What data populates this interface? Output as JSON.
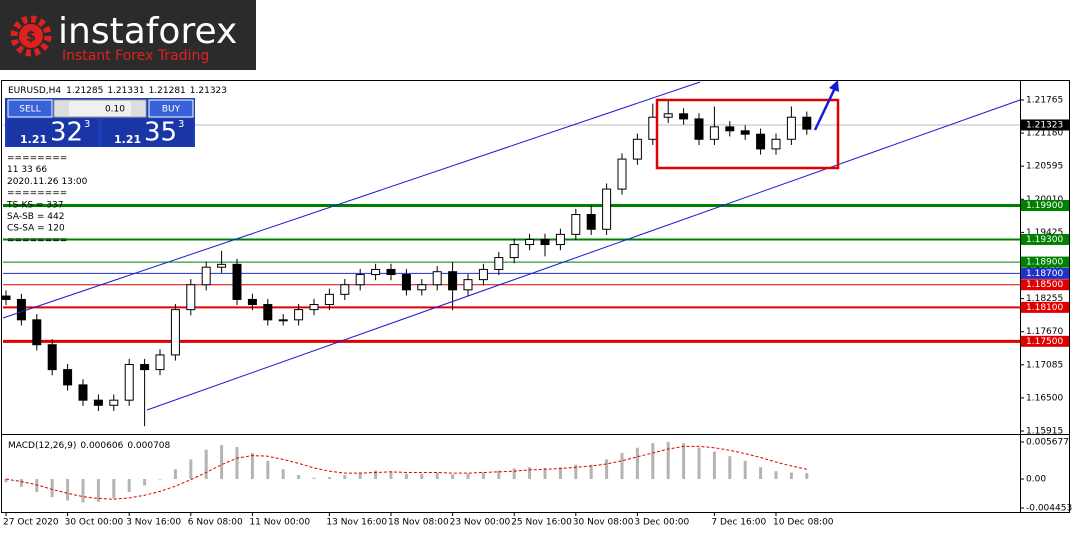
{
  "logo": {
    "name": "instaforex",
    "tagline": "Instant Forex Trading"
  },
  "trade_panel": {
    "sell": "SELL",
    "buy": "BUY",
    "lots": "0.10",
    "sell_price": {
      "big": "1.21",
      "pips": "32",
      "fraction": "3"
    },
    "buy_price": {
      "big": "1.21",
      "pips": "35",
      "fraction": "3"
    }
  },
  "info_lines": [
    "========",
    "11 33 66",
    "2020.11.26 13:00",
    "========",
    "TS-KS = 337",
    "SA-SB = 442",
    "CS-SA = 120",
    "========"
  ],
  "chart_data": [
    {
      "type": "candlestick",
      "title": "EURUSD,H4",
      "quote": [
        1.21285,
        1.21331,
        1.21281,
        1.21323
      ],
      "categories": [
        "27 Oct 2020",
        null,
        null,
        null,
        "30 Oct 00:00",
        null,
        null,
        null,
        "3 Nov 16:00",
        null,
        null,
        null,
        "6 Nov 08:00",
        null,
        null,
        null,
        "11 Nov 00:00",
        null,
        null,
        null,
        null,
        "13 Nov 16:00",
        null,
        null,
        null,
        "18 Nov 08:00",
        null,
        null,
        null,
        "23 Nov 00:00",
        null,
        null,
        null,
        "25 Nov 16:00",
        null,
        null,
        null,
        "30 Nov 08:00",
        null,
        null,
        null,
        "3 Dec 00:00",
        null,
        null,
        null,
        null,
        "7 Dec 16:00",
        null,
        null,
        null,
        "10 Dec 08:00",
        null,
        null
      ],
      "ohlc": [
        [
          1.183,
          1.184,
          1.1814,
          1.1824
        ],
        [
          1.1824,
          1.1834,
          1.1778,
          1.1788
        ],
        [
          1.1788,
          1.1798,
          1.1734,
          1.1744
        ],
        [
          1.1744,
          1.1754,
          1.169,
          1.17
        ],
        [
          1.17,
          1.171,
          1.1663,
          1.1673
        ],
        [
          1.1673,
          1.1683,
          1.1636,
          1.1646
        ],
        [
          1.1646,
          1.1656,
          1.1627,
          1.1637
        ],
        [
          1.1637,
          1.1656,
          1.1627,
          1.1646
        ],
        [
          1.1646,
          1.1719,
          1.1636,
          1.1709
        ],
        [
          1.1709,
          1.1719,
          1.16,
          1.17
        ],
        [
          1.17,
          1.1736,
          1.169,
          1.1726
        ],
        [
          1.1726,
          1.1816,
          1.1716,
          1.1806
        ],
        [
          1.1806,
          1.186,
          1.1796,
          1.185
        ],
        [
          1.185,
          1.1891,
          1.184,
          1.1881
        ],
        [
          1.1881,
          1.191,
          1.1871,
          1.1886
        ],
        [
          1.1886,
          1.1896,
          1.1814,
          1.1824
        ],
        [
          1.1824,
          1.1834,
          1.1805,
          1.1815
        ],
        [
          1.1815,
          1.1825,
          1.1778,
          1.1788
        ],
        [
          1.1788,
          1.1798,
          1.1778,
          1.1788
        ],
        [
          1.1788,
          1.1816,
          1.1778,
          1.1806
        ],
        [
          1.1806,
          1.1825,
          1.1796,
          1.1815
        ],
        [
          1.1815,
          1.1843,
          1.1805,
          1.1833
        ],
        [
          1.1833,
          1.186,
          1.1823,
          1.185
        ],
        [
          1.185,
          1.1878,
          1.184,
          1.1868
        ],
        [
          1.1868,
          1.1887,
          1.1858,
          1.1877
        ],
        [
          1.1877,
          1.1887,
          1.1858,
          1.1868
        ],
        [
          1.1868,
          1.1878,
          1.1831,
          1.1841
        ],
        [
          1.1841,
          1.186,
          1.1831,
          1.185
        ],
        [
          1.185,
          1.1883,
          1.184,
          1.1873
        ],
        [
          1.1873,
          1.189,
          1.1805,
          1.1841
        ],
        [
          1.1841,
          1.1869,
          1.1831,
          1.1859
        ],
        [
          1.1859,
          1.1887,
          1.1849,
          1.1877
        ],
        [
          1.1877,
          1.1908,
          1.1867,
          1.1898
        ],
        [
          1.1898,
          1.1931,
          1.1888,
          1.1921
        ],
        [
          1.1921,
          1.194,
          1.1911,
          1.193
        ],
        [
          1.193,
          1.194,
          1.19,
          1.1921
        ],
        [
          1.1921,
          1.1949,
          1.1911,
          1.1939
        ],
        [
          1.1939,
          1.1984,
          1.1929,
          1.1974
        ],
        [
          1.1974,
          1.199,
          1.1938,
          1.1948
        ],
        [
          1.1948,
          1.2029,
          1.1938,
          1.2019
        ],
        [
          1.2019,
          1.2082,
          1.2009,
          1.2072
        ],
        [
          1.2072,
          1.2117,
          1.2062,
          1.2107
        ],
        [
          1.2107,
          1.217,
          1.2097,
          1.2146
        ],
        [
          1.2146,
          1.2177,
          1.2136,
          1.2152
        ],
        [
          1.2152,
          1.2162,
          1.2133,
          1.2143
        ],
        [
          1.2143,
          1.2153,
          1.2097,
          1.2107
        ],
        [
          1.2107,
          1.2165,
          1.2097,
          1.2129
        ],
        [
          1.2129,
          1.2139,
          1.2112,
          1.2122
        ],
        [
          1.2122,
          1.2132,
          1.2106,
          1.2116
        ],
        [
          1.2116,
          1.2126,
          1.208,
          1.209
        ],
        [
          1.209,
          1.2117,
          1.208,
          1.2107
        ],
        [
          1.2107,
          1.2165,
          1.2097,
          1.2146
        ],
        [
          1.2146,
          1.2156,
          1.2115,
          1.2125
        ]
      ],
      "ylim": [
        1.1588,
        1.221
      ],
      "yticks": [
        {
          "value": 1.21765,
          "label": "1.21765"
        },
        {
          "value": 1.2118,
          "label": "1.21180"
        },
        {
          "value": 1.20595,
          "label": "1.20595"
        },
        {
          "value": 1.2001,
          "label": "1.20010"
        },
        {
          "value": 1.19425,
          "label": "1.19425"
        },
        {
          "value": 1.1884,
          "label": "1.18840"
        },
        {
          "value": 1.18255,
          "label": "1.18255"
        },
        {
          "value": 1.1767,
          "label": "1.17670"
        },
        {
          "value": 1.17085,
          "label": "1.17085"
        },
        {
          "value": 1.165,
          "label": "1.16500"
        },
        {
          "value": 1.15915,
          "label": "1.15915"
        }
      ],
      "current_price": {
        "value": 1.21323,
        "label": "1.21323"
      },
      "levels": [
        {
          "value": 1.199,
          "label": "1.19900",
          "color": "#008000",
          "width": 3
        },
        {
          "value": 1.193,
          "label": "1.19300",
          "color": "#008000",
          "width": 2
        },
        {
          "value": 1.189,
          "label": "1.18900",
          "color": "#008000",
          "width": 1
        },
        {
          "value": 1.187,
          "label": "1.18700",
          "color": "#2030c8",
          "width": 1
        },
        {
          "value": 1.185,
          "label": "1.18500",
          "color": "#e00000",
          "width": 1
        },
        {
          "value": 1.181,
          "label": "1.18100",
          "color": "#e00000",
          "width": 2
        },
        {
          "value": 1.175,
          "label": "1.17500",
          "color": "#e00000",
          "width": 3
        }
      ]
    },
    {
      "type": "macd",
      "title": "MACD(12,26,9)",
      "quote": [
        0.000606,
        0.000708
      ],
      "ylim": [
        -0.00522,
        0.0066
      ],
      "yticks": [
        0.005677,
        {
          "value": 0,
          "label": "0.00"
        },
        -0.004453
      ],
      "series": [
        {
          "name": "MACD",
          "color": "#b4b4b4",
          "values": [
            -0.0005,
            -0.0012,
            -0.002,
            -0.0028,
            -0.0033,
            -0.0036,
            -0.0035,
            -0.003,
            -0.002,
            -0.001,
            0.0,
            0.0015,
            0.003,
            0.0045,
            0.0052,
            0.0049,
            0.004,
            0.0028,
            0.0015,
            0.0006,
            0.0002,
            0.0003,
            0.0006,
            0.001,
            0.0013,
            0.0012,
            0.0008,
            0.0008,
            0.001,
            0.0007,
            0.0008,
            0.001,
            0.0013,
            0.0016,
            0.0018,
            0.0017,
            0.0018,
            0.0022,
            0.0022,
            0.003,
            0.004,
            0.0048,
            0.0055,
            0.0057,
            0.0055,
            0.0048,
            0.0042,
            0.0035,
            0.0028,
            0.0018,
            0.0012,
            0.001,
            0.0009
          ]
        },
        {
          "name": "Signal",
          "color": "#e00000",
          "values": [
            0.0,
            -0.0004,
            -0.0009,
            -0.0016,
            -0.0022,
            -0.0027,
            -0.003,
            -0.0031,
            -0.0029,
            -0.0025,
            -0.0019,
            -0.0011,
            -0.0001,
            0.001,
            0.0022,
            0.0032,
            0.0036,
            0.0035,
            0.003,
            0.0024,
            0.0017,
            0.0012,
            0.0009,
            0.0009,
            0.001,
            0.0011,
            0.001,
            0.001,
            0.001,
            0.0009,
            0.0009,
            0.001,
            0.0011,
            0.0012,
            0.0014,
            0.0015,
            0.0016,
            0.0018,
            0.002,
            0.0023,
            0.0028,
            0.0034,
            0.004,
            0.0046,
            0.005,
            0.005,
            0.0048,
            0.0044,
            0.0039,
            0.0033,
            0.0026,
            0.002,
            0.0015
          ]
        }
      ]
    }
  ]
}
